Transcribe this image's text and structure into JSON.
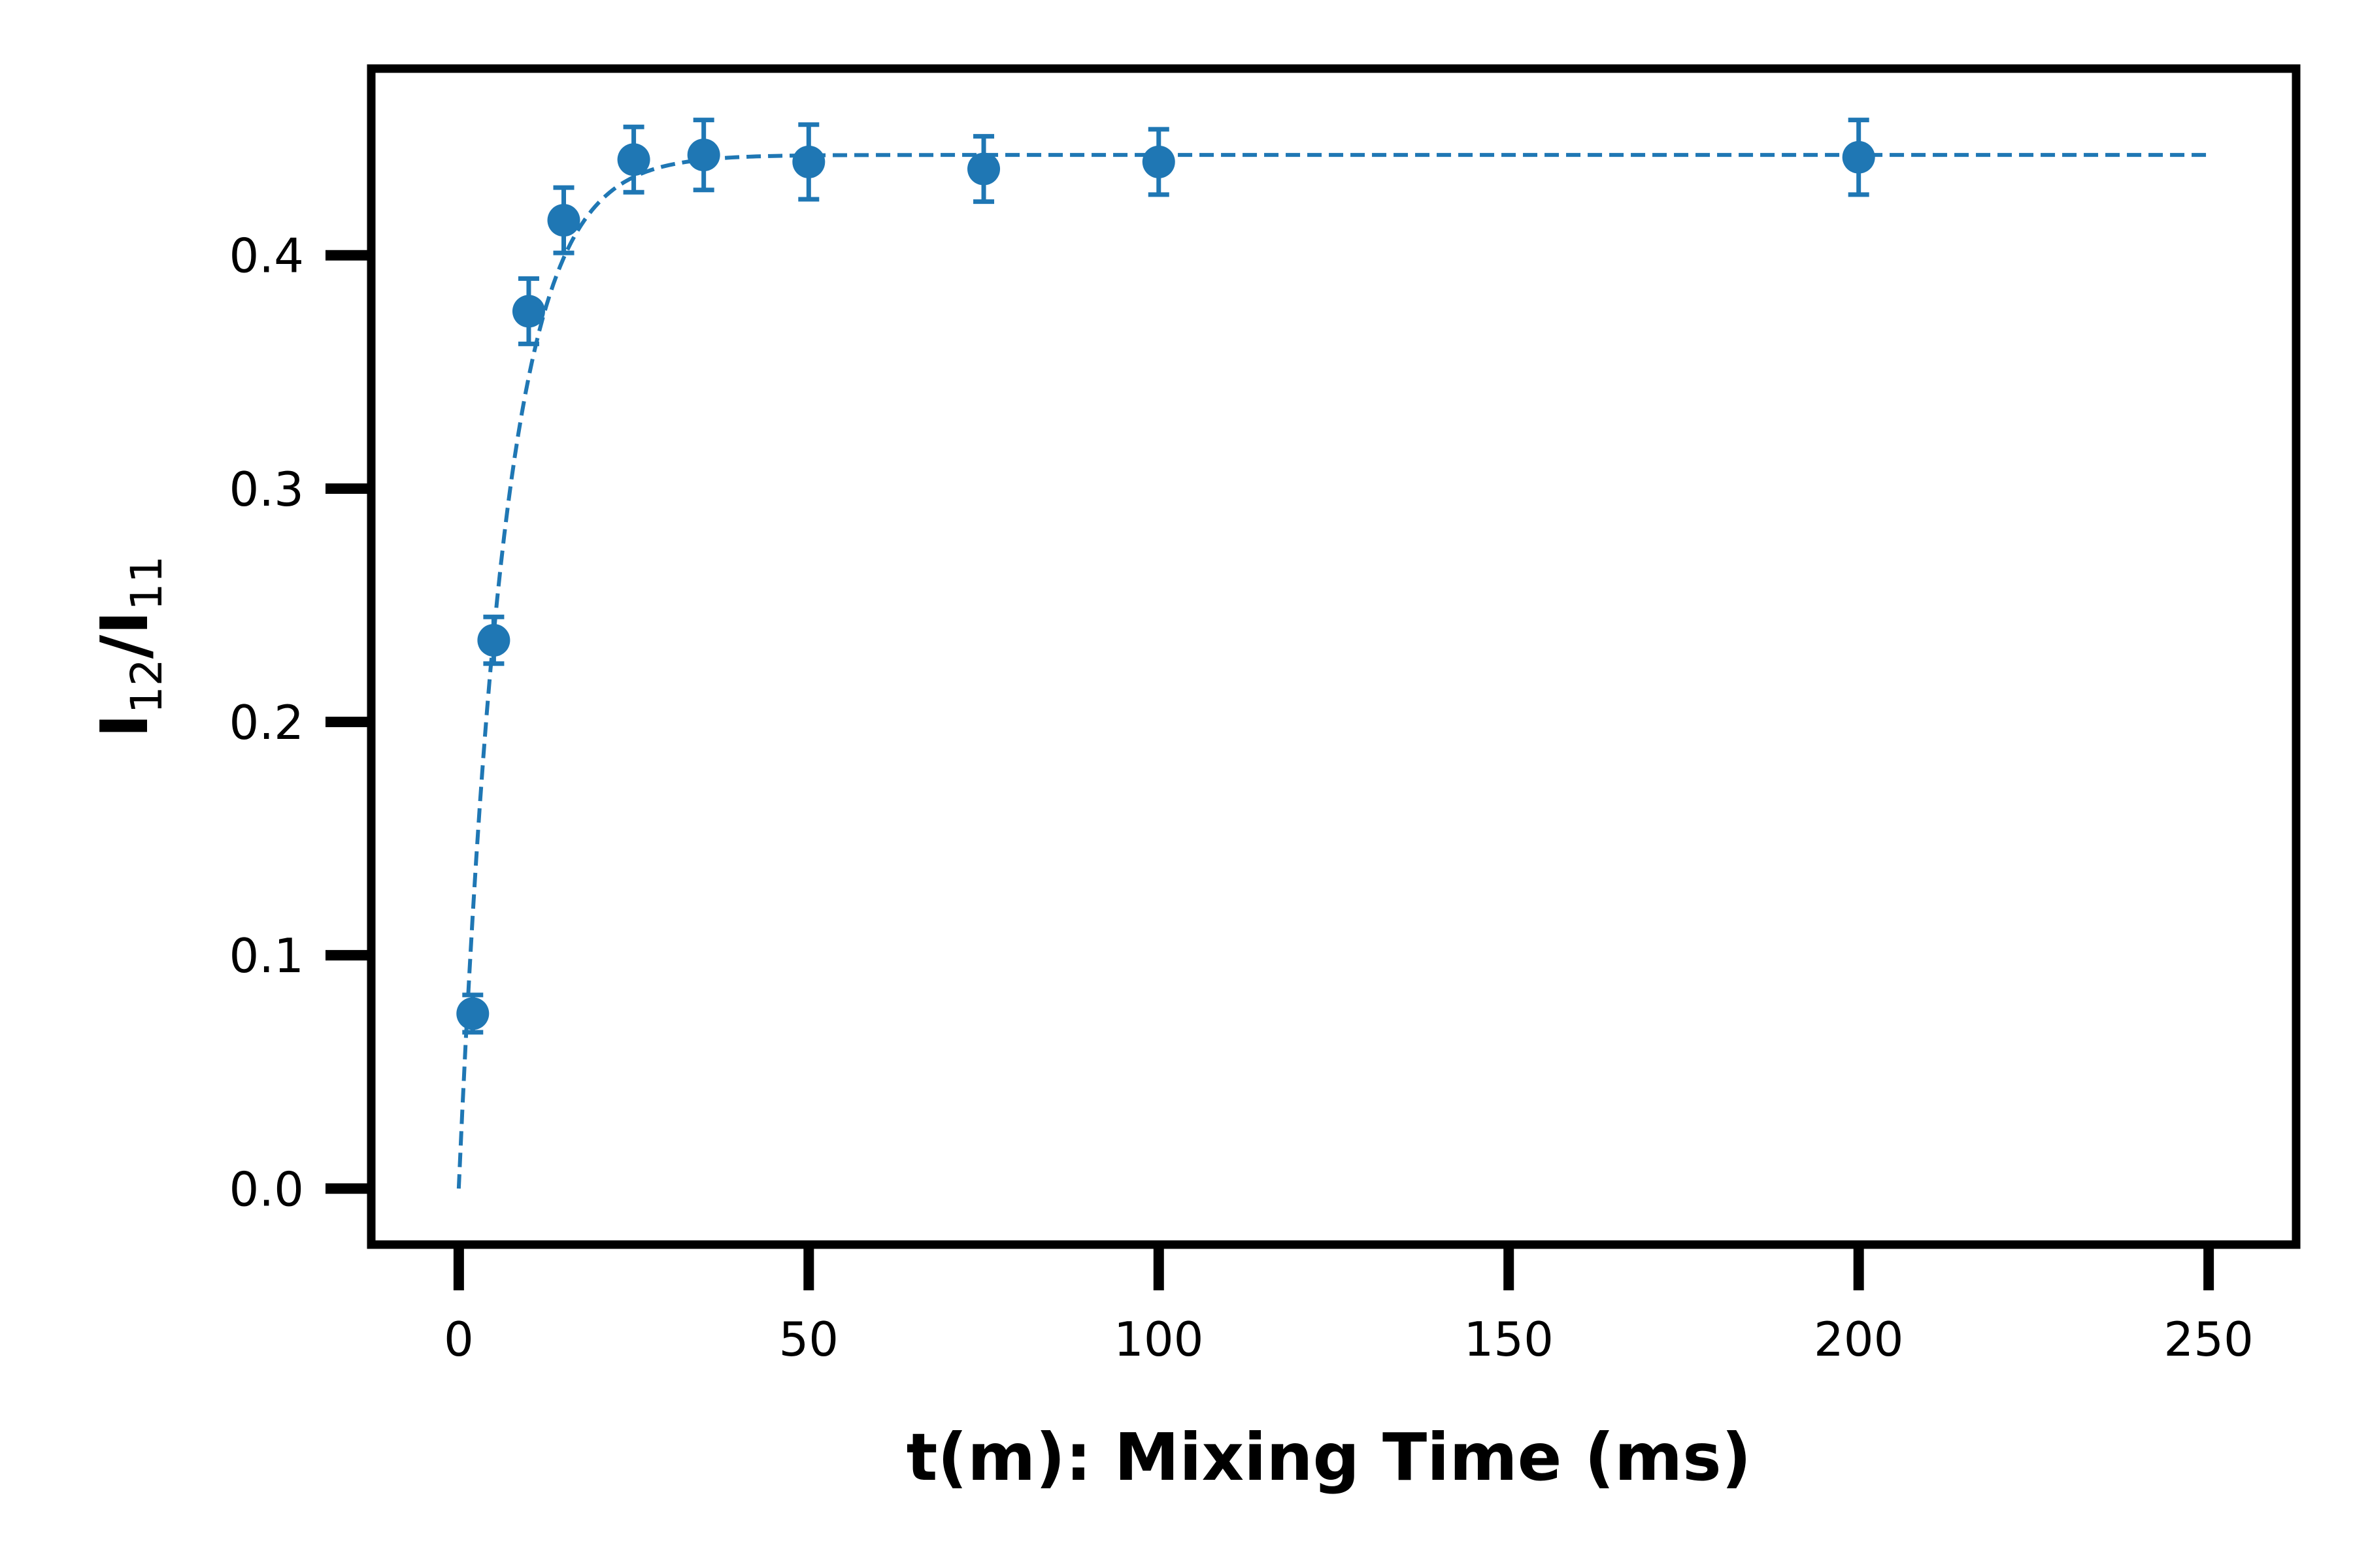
{
  "chart_data": {
    "type": "scatter",
    "title": "",
    "xlabel": "t(m): Mixing Time (ms)",
    "ylabel": {
      "base1": "I",
      "sub1": "12",
      "sep": "/",
      "base2": "I",
      "sub2": "11"
    },
    "xlim": [
      -12.5,
      262.5
    ],
    "ylim": [
      -0.024,
      0.48
    ],
    "x_ticks": [
      0,
      50,
      100,
      150,
      200,
      250
    ],
    "y_ticks": [
      0.0,
      0.1,
      0.2,
      0.3,
      0.4
    ],
    "x_tick_labels": [
      "0",
      "50",
      "100",
      "150",
      "200",
      "250"
    ],
    "y_tick_labels": [
      "0.0",
      "0.1",
      "0.2",
      "0.3",
      "0.4"
    ],
    "grid": false,
    "legend": false,
    "series": [
      {
        "color": "#1f77b4",
        "x": [
          2,
          5,
          10,
          15,
          25,
          35,
          50,
          75,
          100,
          200
        ],
        "y": [
          0.075,
          0.235,
          0.376,
          0.415,
          0.441,
          0.443,
          0.44,
          0.437,
          0.44,
          0.442
        ],
        "yerr": [
          0.008,
          0.01,
          0.014,
          0.014,
          0.014,
          0.015,
          0.016,
          0.014,
          0.014,
          0.016
        ]
      }
    ],
    "fit_curve": {
      "color": "#1f77b4",
      "style": "dashed",
      "model": "plateau * (1 - exp(-x / tau))",
      "plateau": 0.443,
      "tau": 6.5,
      "x_range": [
        0,
        250
      ]
    }
  }
}
